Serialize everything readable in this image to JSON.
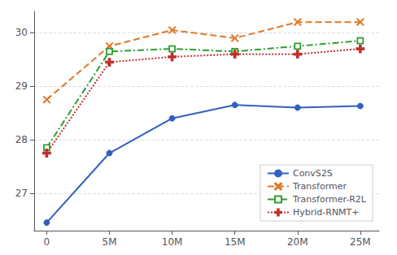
{
  "chart_data": {
    "type": "line",
    "x": [
      0,
      5,
      10,
      15,
      20,
      25
    ],
    "xlim": [
      -1.0,
      26.5
    ],
    "xticks": [
      {
        "value": 0,
        "label": "0"
      },
      {
        "value": 5,
        "label": "5M"
      },
      {
        "value": 10,
        "label": "10M"
      },
      {
        "value": 15,
        "label": "15M"
      },
      {
        "value": 20,
        "label": "20M"
      },
      {
        "value": 25,
        "label": "25M"
      }
    ],
    "ylim": [
      26.3,
      30.4
    ],
    "yticks": [
      27,
      28,
      29,
      30
    ],
    "grid": true,
    "legend": "lower right",
    "series": [
      {
        "name": "ConvS2S",
        "color": "#3060c0",
        "marker": "circle",
        "line_style": "solid",
        "values": [
          26.45,
          27.75,
          28.4,
          28.65,
          28.6,
          28.63
        ]
      },
      {
        "name": "Transformer",
        "color": "#e07828",
        "marker": "x",
        "line_style": "dashed",
        "values": [
          28.75,
          29.75,
          30.05,
          29.9,
          30.2,
          30.2
        ]
      },
      {
        "name": "Transformer-R2L",
        "color": "#2e9e2e",
        "marker": "open-square",
        "line_style": "dashdot",
        "values": [
          27.85,
          29.65,
          29.7,
          29.65,
          29.75,
          29.85
        ]
      },
      {
        "name": "Hybrid-RNMT+",
        "color": "#c03030",
        "marker": "open-plus",
        "line_style": "dotted",
        "values": [
          27.75,
          29.45,
          29.55,
          29.6,
          29.6,
          29.7
        ]
      }
    ]
  }
}
